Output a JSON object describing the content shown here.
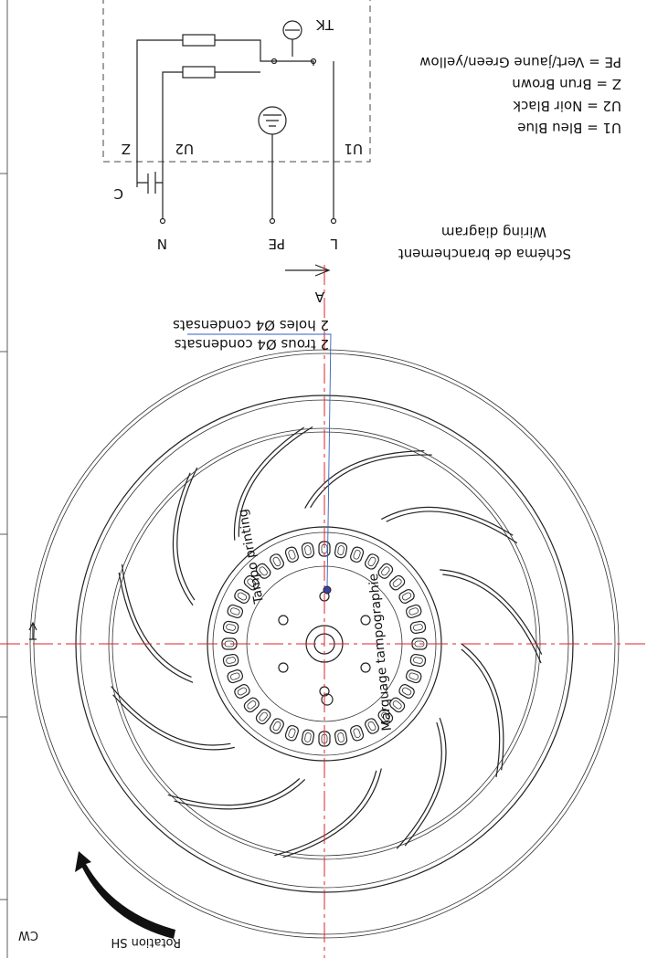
{
  "wiring_diagram": {
    "title_fr": "Schéma de branchement",
    "title_en": "Wiring diagram",
    "legend": [
      "U1 = Bleu  Blue",
      "U2 = Noir  Black",
      "Z = Brun  Brown",
      "PE = Vert/jaune  Green/yellow"
    ],
    "labels": {
      "tk": "TK",
      "u1": "U1",
      "u2": "U2",
      "z": "Z",
      "c": "C",
      "n": "N",
      "pe": "PE",
      "l": "L"
    }
  },
  "section_marker": "A",
  "notes": {
    "condensate_fr": "2 trous Ø4 condensats",
    "condensate_en": "2 holes Ø4 condensats",
    "print_en": "Tampo printing",
    "print_fr": "Marquage tampographie"
  },
  "rotation": {
    "label": "Rotation SH",
    "direction": "CW"
  }
}
